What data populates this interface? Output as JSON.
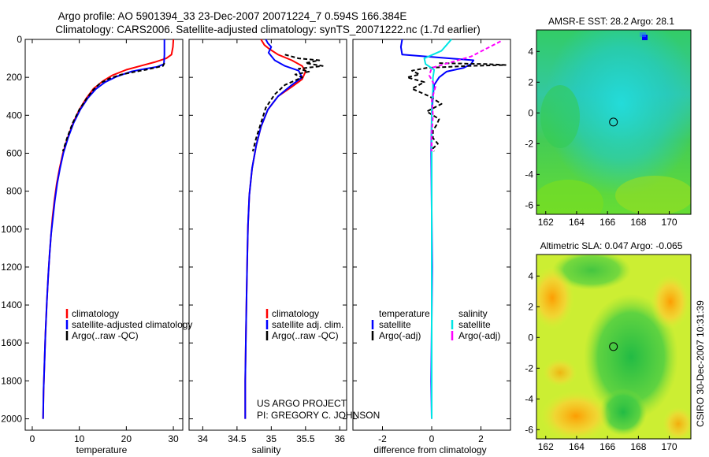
{
  "header": {
    "line1": "Argo profile: AO 5901394_33 23-Dec-2007 20071224_7 0.594S 166.384E",
    "line2": "Climatology: CARS2006. Satellite-adjusted climatology: synTS_20071222.nc (1.7d earlier)"
  },
  "credits": {
    "project": "US ARGO PROJECT",
    "pi": "PI: GREGORY C. JOHNSON",
    "stamp": "CSIRO 30-Dec-2007 10:31:39"
  },
  "colors": {
    "climatology": "#ff0000",
    "satellite": "#0000ff",
    "argo": "#000000",
    "salinity_sat": "#00e5e5",
    "salinity_argo": "#ff00ff"
  },
  "chart_data": [
    {
      "type": "line",
      "id": "temperature",
      "xlabel": "temperature",
      "xlim": [
        -1.5,
        32
      ],
      "ylim": [
        2060,
        0
      ],
      "xticks": [
        0,
        10,
        20,
        30
      ],
      "yticks": [
        0,
        200,
        400,
        600,
        800,
        1000,
        1200,
        1400,
        1600,
        1800,
        2000
      ],
      "legend": [
        "climatology",
        "satellite-adjusted climatology",
        "Argo(..raw -QC)"
      ],
      "series": [
        {
          "name": "climatology",
          "color": "#ff0000",
          "dash": "",
          "x": [
            30,
            29.9,
            29.6,
            28.5,
            26,
            23,
            20,
            17,
            15,
            13,
            11.5,
            10,
            8.7,
            7.5,
            6.5,
            5.8,
            5.2,
            4.7,
            4.3,
            4,
            3.7,
            3.4,
            3.1,
            2.8,
            2.6,
            2.4,
            2.3
          ],
          "y": [
            0,
            40,
            80,
            100,
            120,
            140,
            160,
            190,
            220,
            260,
            310,
            370,
            440,
            520,
            600,
            680,
            760,
            850,
            940,
            1030,
            1130,
            1240,
            1380,
            1550,
            1700,
            1850,
            2000
          ]
        },
        {
          "name": "satellite-adjusted climatology",
          "color": "#0000ff",
          "dash": "",
          "x": [
            28.1,
            28.1,
            28.1,
            28.0,
            26.5,
            24,
            21,
            18,
            15.5,
            13.5,
            11.8,
            10.2,
            8.8,
            7.6,
            6.6,
            5.9,
            5.3,
            4.8,
            4.4,
            4,
            3.7,
            3.4,
            3.1,
            2.8,
            2.6,
            2.4,
            2.3
          ],
          "y": [
            0,
            40,
            80,
            130,
            145,
            155,
            170,
            195,
            225,
            262,
            310,
            370,
            440,
            520,
            600,
            680,
            760,
            850,
            940,
            1030,
            1130,
            1240,
            1380,
            1550,
            1700,
            1850,
            2000
          ]
        },
        {
          "name": "Argo(..raw -QC)",
          "color": "#000000",
          "dash": "5,3",
          "x": [
            28.1,
            28.0,
            27.8,
            26,
            24.2,
            22,
            19,
            16.5,
            14.5,
            13,
            11.6,
            10,
            8.6,
            7.4,
            6.5
          ],
          "y": [
            125,
            130,
            140,
            150,
            160,
            170,
            185,
            205,
            230,
            265,
            310,
            370,
            440,
            520,
            590
          ]
        }
      ]
    },
    {
      "type": "line",
      "id": "salinity",
      "xlabel": "salinity",
      "xlim": [
        33.8,
        36.1
      ],
      "ylim": [
        2060,
        0
      ],
      "xticks": [
        34,
        34.5,
        35,
        35.5,
        36
      ],
      "legend": [
        "climatology",
        "satellite adj. clim.",
        "Argo(..raw -QC)"
      ],
      "series": [
        {
          "name": "climatology",
          "color": "#ff0000",
          "dash": "",
          "x": [
            34.85,
            34.9,
            34.97,
            35.1,
            35.3,
            35.45,
            35.5,
            35.45,
            35.3,
            35.1,
            34.95,
            34.85,
            34.78,
            34.72,
            34.68,
            34.66,
            34.65,
            34.64,
            34.63,
            34.62,
            34.62
          ],
          "y": [
            0,
            30,
            50,
            80,
            110,
            140,
            170,
            210,
            250,
            300,
            370,
            460,
            560,
            680,
            820,
            980,
            1150,
            1350,
            1550,
            1800,
            2000
          ]
        },
        {
          "name": "satellite adj. clim.",
          "color": "#0000ff",
          "dash": "",
          "x": [
            34.92,
            34.95,
            35.0,
            34.96,
            35.05,
            35.2,
            35.4,
            35.45,
            35.3,
            35.1,
            34.95,
            34.85,
            34.78,
            34.72,
            34.68,
            34.66,
            34.65,
            34.64,
            34.63,
            34.62,
            34.62
          ],
          "y": [
            0,
            20,
            40,
            70,
            110,
            140,
            165,
            200,
            240,
            300,
            370,
            460,
            560,
            680,
            820,
            980,
            1150,
            1350,
            1550,
            1800,
            2000
          ]
        },
        {
          "name": "Argo(..raw -QC)",
          "color": "#000000",
          "dash": "5,3",
          "x": [
            35.2,
            35.4,
            35.7,
            35.5,
            35.75,
            35.4,
            35.55,
            35.35,
            35.45,
            35.2,
            35.05,
            34.92,
            34.85,
            34.78,
            34.73
          ],
          "y": [
            80,
            100,
            110,
            125,
            140,
            155,
            170,
            185,
            200,
            240,
            290,
            360,
            440,
            520,
            590
          ]
        }
      ]
    },
    {
      "type": "line",
      "id": "difference",
      "xlabel": "difference from climatology",
      "xlim": [
        -3.2,
        3.2
      ],
      "ylim": [
        2060,
        0
      ],
      "xticks": [
        -2,
        0,
        2
      ],
      "legend": [
        "temperature",
        "satellite",
        "Argo(-adj)",
        "salinity",
        "satellite",
        "Argo(-adj)"
      ],
      "series": [
        {
          "name": "temperature satellite",
          "color": "#0000ff",
          "dash": "",
          "x": [
            -1.2,
            -1.25,
            -1.2,
            1.7,
            1.6,
            1.3,
            0.6,
            0.3,
            0.1,
            0.05,
            0.0,
            -0.02,
            0.0,
            0.02,
            0.0,
            -0.02,
            0.0
          ],
          "y": [
            0,
            40,
            80,
            110,
            130,
            150,
            170,
            200,
            240,
            300,
            400,
            600,
            900,
            1200,
            1500,
            1800,
            2000
          ]
        },
        {
          "name": "temperature Argo(-adj)",
          "color": "#000000",
          "dash": "5,3",
          "x": [
            0.3,
            2.2,
            3.0,
            1.5,
            -0.2,
            -0.8,
            -0.5,
            -1.0,
            -0.3,
            -0.8,
            -0.1,
            0.4,
            -0.2,
            0.3,
            0.2,
            0.05,
            0.05,
            0.25,
            0.05,
            0.1
          ],
          "y": [
            125,
            130,
            135,
            140,
            150,
            165,
            185,
            200,
            225,
            260,
            300,
            340,
            380,
            420,
            450,
            480,
            520,
            550,
            575,
            590
          ]
        },
        {
          "name": "salinity satellite",
          "color": "#00e5e5",
          "dash": "",
          "x": [
            0.8,
            0.6,
            0.4,
            -0.3,
            -0.25,
            0.1,
            0.05,
            0.05,
            0.0,
            0.0,
            0.0,
            0.0,
            0.0,
            0.0
          ],
          "y": [
            0,
            30,
            60,
            100,
            130,
            160,
            200,
            260,
            350,
            500,
            800,
            1200,
            1600,
            2000
          ]
        },
        {
          "name": "salinity Argo(-adj)",
          "color": "#ff00ff",
          "dash": "5,3",
          "x": [
            2.8,
            2.2,
            1.6,
            0.8,
            0.0,
            -0.1,
            0.15,
            0.0,
            0.05,
            0.0,
            0.0
          ],
          "y": [
            10,
            50,
            90,
            120,
            150,
            190,
            250,
            320,
            400,
            500,
            590
          ]
        }
      ]
    },
    {
      "type": "heatmap",
      "id": "sst_map",
      "title": "AMSR-E SST: 28.2 Argo: 28.1",
      "xticks": [
        162,
        164,
        166,
        168,
        170
      ],
      "yticks": [
        4,
        2,
        0,
        -2,
        -4,
        -6
      ],
      "xlim": [
        161.4,
        171.4
      ],
      "ylim": [
        -6.6,
        5.4
      ],
      "argo_position": [
        166.384,
        -0.594
      ]
    },
    {
      "type": "heatmap",
      "id": "sla_map",
      "title": "Altimetric SLA: 0.047 Argo: -0.065",
      "xticks": [
        162,
        164,
        166,
        168,
        170
      ],
      "yticks": [
        4,
        2,
        0,
        -2,
        -4,
        -6
      ],
      "xlim": [
        161.4,
        171.4
      ],
      "ylim": [
        -6.6,
        5.4
      ],
      "argo_position": [
        166.384,
        -0.594
      ]
    }
  ]
}
